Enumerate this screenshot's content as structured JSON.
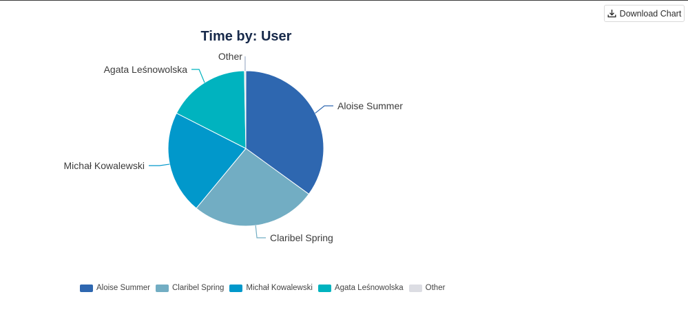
{
  "toolbar": {
    "download_label": "Download Chart",
    "download_icon": "download-icon"
  },
  "chart_data": {
    "type": "pie",
    "title": "Time by: User",
    "slices": [
      {
        "name": "Aloise Summer",
        "value": 35.0,
        "color": "#2E67B0"
      },
      {
        "name": "Claribel Spring",
        "value": 26.0,
        "color": "#72ADC3"
      },
      {
        "name": "Michał Kowalewski",
        "value": 21.5,
        "color": "#0198CB"
      },
      {
        "name": "Agata Leśnowolska",
        "value": 17.2,
        "color": "#00B3BF"
      },
      {
        "name": "Other",
        "value": 0.3,
        "color": "#DCDDE3"
      }
    ],
    "legend_position": "bottom-left"
  }
}
